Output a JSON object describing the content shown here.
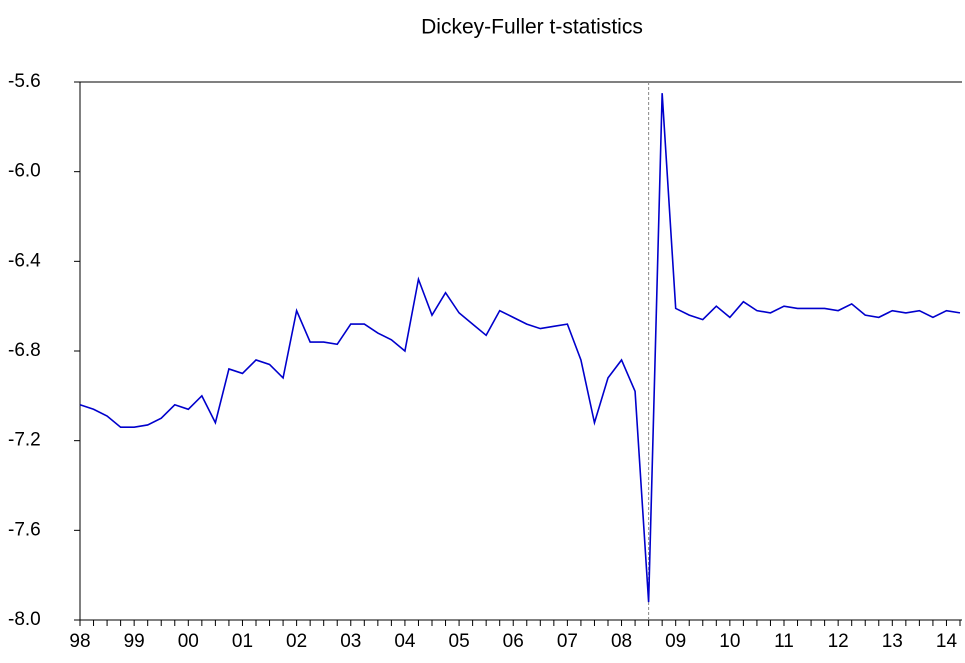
{
  "chart_data": {
    "type": "line",
    "title": "Dickey-Fuller t-statistics",
    "categories": [
      "98",
      null,
      null,
      null,
      "99",
      null,
      null,
      null,
      "00",
      null,
      null,
      null,
      "01",
      null,
      null,
      null,
      "02",
      null,
      null,
      null,
      "03",
      null,
      null,
      null,
      "04",
      null,
      null,
      null,
      "05",
      null,
      null,
      null,
      "06",
      null,
      null,
      null,
      "07",
      null,
      null,
      null,
      "08",
      null,
      null,
      null,
      "09",
      null,
      null,
      null,
      "10",
      null,
      null,
      null,
      "11",
      null,
      null,
      null,
      "12",
      null,
      null,
      null,
      "13",
      null,
      null,
      null,
      "14",
      null
    ],
    "series": [
      {
        "color": "#0000cc",
        "values": [
          -7.04,
          -7.06,
          -7.09,
          -7.14,
          -7.14,
          -7.13,
          -7.1,
          -7.04,
          -7.06,
          -7.0,
          -7.12,
          -6.88,
          -6.9,
          -6.84,
          -6.86,
          -6.92,
          -6.62,
          -6.76,
          -6.76,
          -6.77,
          -6.68,
          -6.68,
          -6.72,
          -6.75,
          -6.8,
          -6.48,
          -6.64,
          -6.54,
          -6.63,
          -6.68,
          -6.73,
          -6.62,
          -6.65,
          -6.68,
          -6.7,
          -6.69,
          -6.68,
          -6.84,
          -7.12,
          -6.92,
          -6.84,
          -6.98,
          -7.92,
          -5.65,
          -6.61,
          -6.64,
          -6.66,
          -6.6,
          -6.65,
          -6.58,
          -6.62,
          -6.63,
          -6.6,
          -6.61,
          -6.61,
          -6.61,
          -6.62,
          -6.59,
          -6.64,
          -6.65,
          -6.62,
          -6.63,
          -6.62,
          -6.65,
          -6.62,
          -6.63
        ]
      }
    ],
    "reference_line_index": 42,
    "ylim": [
      -8.0,
      -5.6
    ],
    "yticks": [
      -5.6,
      {
        "value": -6.0,
        "label": "-6.0"
      },
      -6.4,
      -6.8,
      -7.2,
      -7.6,
      {
        "value": -8.0,
        "label": "-8.0"
      }
    ]
  }
}
